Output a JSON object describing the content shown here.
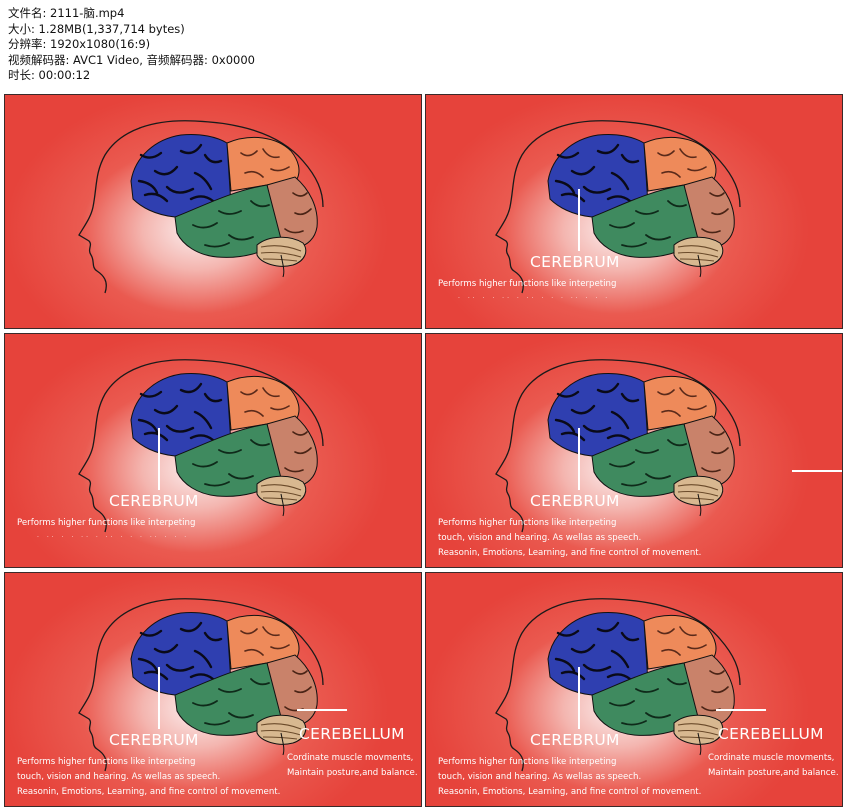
{
  "file_info": {
    "name": "文件名: 2111-脑.mp4",
    "size": "大小: 1.28MB(1,337,714 bytes)",
    "resolution": "分辨率: 1920x1080(16:9)",
    "codec": "视频解码器: AVC1 Video, 音频解码器: 0x0000",
    "duration": "时长: 00:00:12"
  },
  "labels": {
    "cerebrum": "CEREBRUM",
    "cerebellum": "CEREBELLUM"
  },
  "cerebrum_desc": {
    "line1": "Performs higher functions like interpeting",
    "line2": "touch, vision and hearing. As wellas as speech.",
    "line3": "Reasonin, Emotions, Learning, and fine control of movement."
  },
  "cerebellum_desc": {
    "line1": "Cordinate muscle movments,",
    "line2": "Maintain posture,and balance."
  },
  "colors": {
    "background": "#e6433b",
    "frontal_lobe": "#2f3fb0",
    "parietal_lobe": "#ee8a5a",
    "temporal_lobe": "#3f8a5f",
    "occipital_lobe": "#c9826a",
    "cerebellum": "#d8b890"
  }
}
